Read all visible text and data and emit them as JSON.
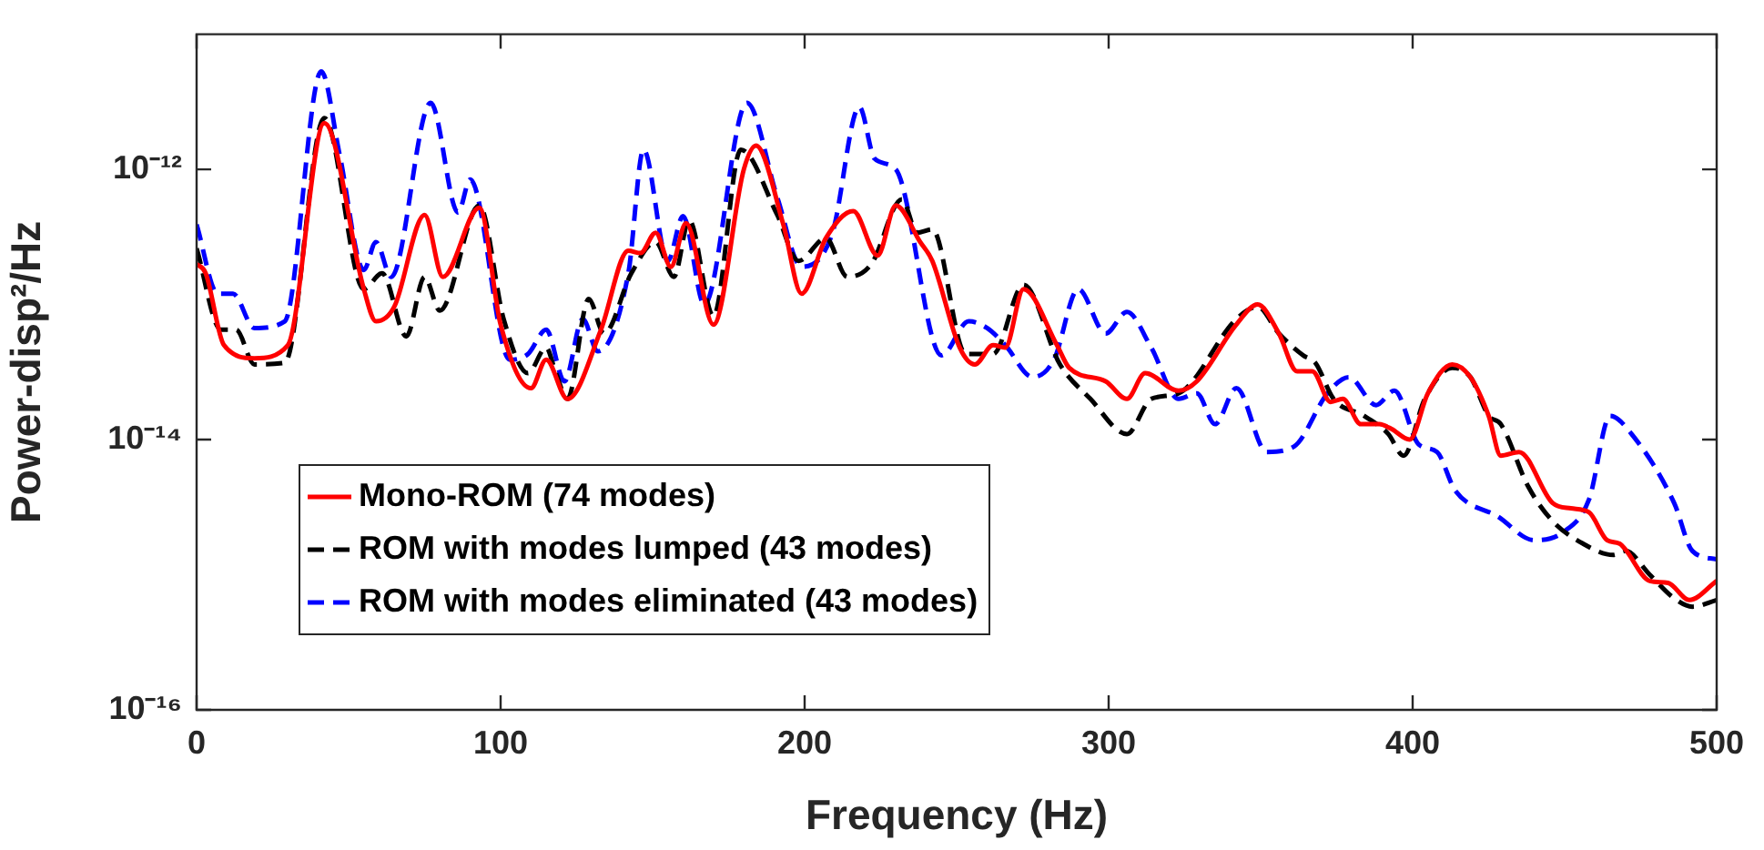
{
  "chart_data": {
    "type": "line",
    "xlabel": "Frequency (Hz)",
    "ylabel": "Power-disp²/Hz",
    "log": "y",
    "xlim": [
      0,
      500
    ],
    "xticks": [
      0,
      100,
      200,
      300,
      400,
      500
    ],
    "ylim": [
      1e-16,
      1e-11
    ],
    "yticks": [
      {
        "value": 1e-16,
        "label": "10⁻¹⁶"
      },
      {
        "value": 1e-14,
        "label": "10⁻¹⁴"
      },
      {
        "value": 1e-12,
        "label": "10⁻¹²"
      }
    ],
    "legend": "bottom left",
    "series": [
      {
        "name": "Mono-ROM (74 modes)",
        "color": "#ff0000",
        "line_style": "solid",
        "x": [
          0,
          3,
          9,
          19,
          30,
          42,
          55,
          59,
          65,
          75,
          81,
          93,
          100,
          110,
          115,
          122,
          133,
          142,
          146,
          151,
          156,
          161,
          170,
          180,
          184,
          193,
          199,
          207,
          216,
          224,
          230,
          238,
          242,
          251,
          256,
          262,
          266,
          272,
          283,
          287,
          299,
          306,
          312,
          323,
          329,
          342,
          349,
          356,
          362,
          367,
          373,
          377,
          383,
          389,
          393,
          399,
          405,
          413,
          419,
          425,
          429,
          435,
          446,
          452,
          458,
          464,
          468,
          478,
          484,
          491,
          500
        ],
        "values": [
          2e-13,
          1.7e-13,
          5e-14,
          4e-14,
          5e-14,
          2.2e-12,
          1.3e-13,
          7.5e-14,
          9.6e-14,
          4.6e-13,
          1.6e-13,
          5.2e-13,
          7.1e-14,
          2.4e-14,
          3.9e-14,
          2e-14,
          6.5e-14,
          2.5e-13,
          2.4e-13,
          3.4e-13,
          1.9e-13,
          4e-13,
          7.1e-14,
          1e-12,
          1.5e-12,
          3.9e-13,
          1.2e-13,
          3.1e-13,
          4.9e-13,
          2.3e-13,
          5.4e-13,
          2.9e-13,
          2.1e-13,
          4.8e-14,
          3.6e-14,
          5e-14,
          4.8e-14,
          1.3e-13,
          5e-14,
          3.4e-14,
          2.7e-14,
          2e-14,
          3.1e-14,
          2.3e-14,
          2.7e-14,
          7.1e-14,
          1e-13,
          6.1e-14,
          3.2e-14,
          3.2e-14,
          1.9e-14,
          2e-14,
          1.3e-14,
          1.3e-14,
          1.2e-14,
          1e-14,
          2.2e-14,
          3.6e-14,
          2.9e-14,
          1.5e-14,
          7.6e-15,
          8.1e-15,
          3.4e-15,
          3.1e-15,
          2.9e-15,
          1.8e-15,
          1.7e-15,
          9e-16,
          8.7e-16,
          6.5e-16,
          9e-16
        ]
      },
      {
        "name": "ROM with modes lumped (43 modes)",
        "color": "#000000",
        "line_style": "dashed",
        "x": [
          0,
          8,
          13,
          19,
          29,
          42,
          55,
          61,
          69,
          75,
          80,
          93,
          101,
          109,
          115,
          118,
          122,
          129,
          134,
          143,
          151,
          157,
          162,
          170,
          179,
          191,
          198,
          207,
          214,
          222,
          232,
          237,
          242,
          253,
          262,
          272,
          284,
          294,
          306,
          314,
          323,
          342,
          349,
          356,
          364,
          368,
          374,
          384,
          392,
          397,
          404,
          413,
          419,
          425,
          429,
          438,
          446,
          456,
          466,
          470,
          478,
          486,
          492,
          500
        ],
        "values": [
          2.6e-13,
          6.5e-14,
          6.5e-14,
          3.6e-14,
          3.7e-14,
          2.4e-12,
          1.3e-13,
          1.7e-13,
          5.8e-14,
          1.6e-13,
          9e-14,
          5.4e-13,
          7.8e-14,
          3.1e-14,
          4.8e-14,
          3.2e-14,
          2e-14,
          1.1e-13,
          6.1e-14,
          1.7e-13,
          2.9e-13,
          1.6e-13,
          4.2e-13,
          8.2e-14,
          1.4e-12,
          4.6e-13,
          2.1e-13,
          3.1e-13,
          1.6e-13,
          2e-13,
          6e-13,
          3.4e-13,
          3.6e-13,
          4.3e-14,
          4.3e-14,
          1.4e-13,
          3.6e-14,
          2e-14,
          1.1e-14,
          2e-14,
          2.2e-14,
          7.8e-14,
          9.6e-14,
          6.1e-14,
          4.2e-14,
          3.7e-14,
          2e-14,
          1.5e-14,
          1.1e-14,
          7.6e-15,
          2e-14,
          3.4e-14,
          2.9e-14,
          1.5e-14,
          1.3e-14,
          4.5e-15,
          2.5e-15,
          1.7e-15,
          1.4e-15,
          1.5e-15,
          1e-15,
          6.7e-16,
          5.8e-16,
          6.5e-16
        ]
      },
      {
        "name": "ROM with modes eliminated (43 modes)",
        "color": "#0000ff",
        "line_style": "dashed",
        "x": [
          0,
          7,
          12,
          19,
          29,
          41,
          47,
          55,
          59,
          64,
          77,
          86,
          90,
          103,
          109,
          115,
          121,
          127,
          132,
          142,
          147,
          155,
          160,
          167,
          181,
          191,
          199,
          209,
          218,
          223,
          230,
          245,
          254,
          260,
          266,
          275,
          282,
          290,
          299,
          306,
          314,
          323,
          329,
          335,
          342,
          352,
          361,
          372,
          379,
          388,
          394,
          402,
          408,
          414,
          428,
          440,
          450,
          458,
          465,
          472,
          486,
          492,
          500
        ],
        "values": [
          3.9e-13,
          1.2e-13,
          1.2e-13,
          6.7e-14,
          7.5e-14,
          5.3e-12,
          1.3e-12,
          1.8e-13,
          2.9e-13,
          1.6e-13,
          3.1e-12,
          4.8e-13,
          8.4e-13,
          3.9e-14,
          4.3e-14,
          6.5e-14,
          2.7e-14,
          7.8e-14,
          4.5e-14,
          1.7e-13,
          1.4e-12,
          2.1e-13,
          4.5e-13,
          1e-13,
          3.1e-12,
          6.2e-13,
          1.9e-13,
          3.3e-13,
          2.9e-12,
          1.2e-12,
          1e-12,
          4.2e-14,
          7.5e-14,
          6.7e-14,
          5e-14,
          2.9e-14,
          3.9e-14,
          1.3e-13,
          6.1e-14,
          8.8e-14,
          4.8e-14,
          2e-14,
          2.2e-14,
          1.3e-14,
          2.4e-14,
          8.1e-15,
          8.9e-15,
          2.2e-14,
          2.9e-14,
          1.8e-14,
          2.3e-14,
          9.2e-15,
          8.1e-15,
          4.2e-15,
          2.7e-15,
          1.8e-15,
          2.1e-15,
          3.6e-15,
          1.5e-14,
          1.1e-14,
          3.4e-15,
          1.5e-15,
          1.3e-15
        ]
      }
    ]
  }
}
